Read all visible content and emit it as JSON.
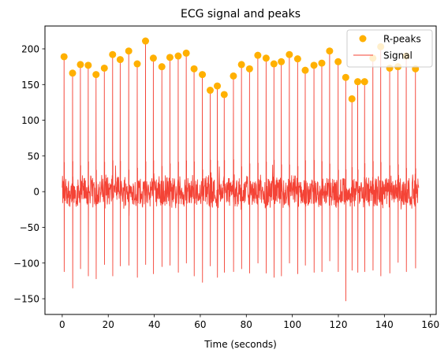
{
  "chart_data": {
    "type": "line",
    "title": "ECG signal and peaks",
    "xlabel": "Time (seconds)",
    "ylabel": "",
    "xlim": [
      -7.5,
      162.5
    ],
    "ylim": [
      -172,
      232
    ],
    "xticks": [
      0,
      20,
      40,
      60,
      80,
      100,
      120,
      140,
      160
    ],
    "yticks": [
      -150,
      -100,
      -50,
      0,
      50,
      100,
      150,
      200
    ],
    "grid": false,
    "legend": "top-right",
    "series": [
      {
        "name": "R-peaks",
        "kind": "scatter",
        "color": "#ffb000",
        "x": [
          0.8,
          4.5,
          7.9,
          11.3,
          14.7,
          18.3,
          21.9,
          25.2,
          28.9,
          32.6,
          36.2,
          39.6,
          43.3,
          46.8,
          50.4,
          53.9,
          57.3,
          60.9,
          64.3,
          67.4,
          70.4,
          74.4,
          77.9,
          81.4,
          85.0,
          88.6,
          92.0,
          95.2,
          98.7,
          102.3,
          105.6,
          109.4,
          112.8,
          116.2,
          119.9,
          123.2,
          125.9,
          128.4,
          131.4,
          135.0,
          138.4,
          142.3,
          145.9,
          149.5,
          153.5
        ],
        "y": [
          189,
          166,
          178,
          177,
          164,
          173,
          192,
          185,
          197,
          179,
          211,
          187,
          175,
          188,
          190,
          194,
          172,
          164,
          142,
          148,
          136,
          162,
          178,
          172,
          191,
          187,
          179,
          182,
          192,
          186,
          170,
          177,
          180,
          197,
          182,
          160,
          130,
          154,
          154,
          187,
          203,
          173,
          175,
          190,
          172
        ]
      },
      {
        "name": "Signal",
        "kind": "line",
        "color": "#f44336",
        "x_range": [
          0,
          155
        ],
        "noise_amplitude": 25,
        "trough_values": [
          -112,
          -135,
          -108,
          -118,
          -122,
          -102,
          -118,
          -104,
          -103,
          -120,
          -102,
          -115,
          -105,
          -103,
          -113,
          -100,
          -118,
          -127,
          -104,
          -120,
          -113,
          -112,
          -108,
          -114,
          -100,
          -114,
          -120,
          -118,
          -100,
          -115,
          -103,
          -113,
          -112,
          -97,
          -112,
          -153,
          -110,
          -113,
          -112,
          -110,
          -118,
          -114,
          -99,
          -112,
          -107
        ]
      }
    ]
  }
}
